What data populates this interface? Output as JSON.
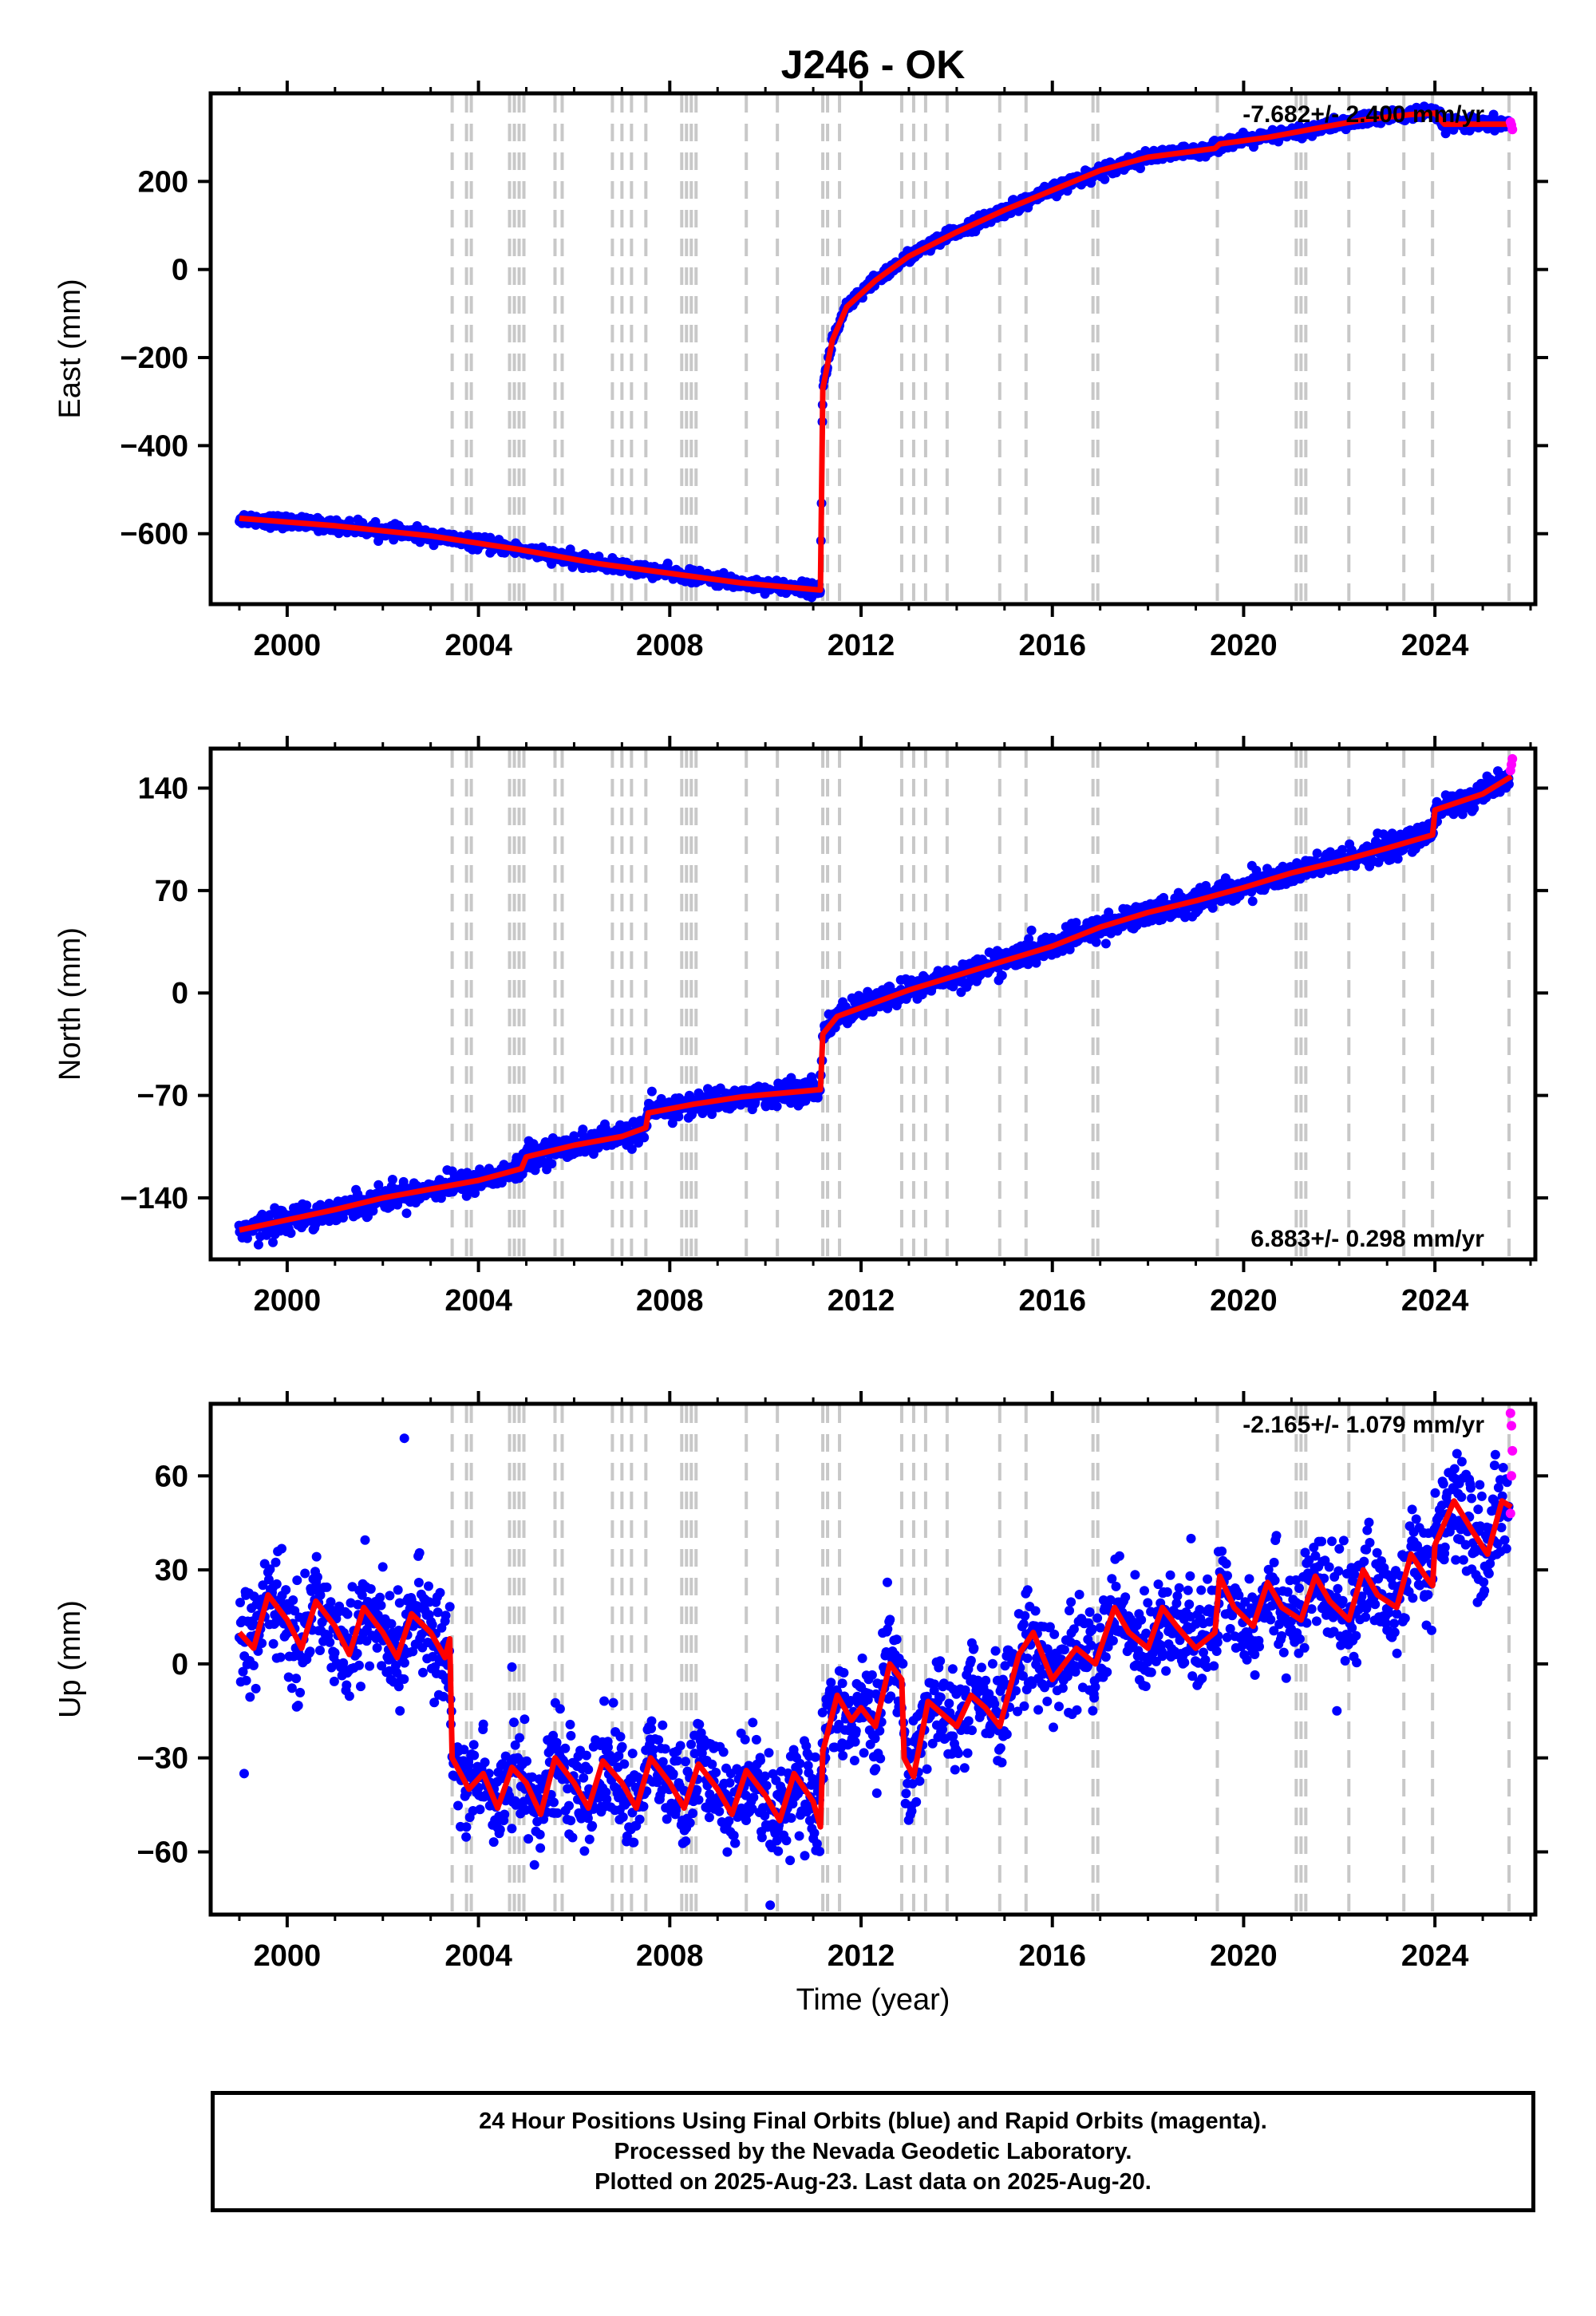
{
  "title": "J246 - OK",
  "footer": {
    "line1": "24 Hour Positions Using Final Orbits (blue) and Rapid Orbits (magenta).",
    "line2": "Processed by the Nevada Geodetic Laboratory.",
    "line3": "Plotted on 2025-Aug-23. Last data on 2025-Aug-20."
  },
  "colors": {
    "final_orbits": "#0000ff",
    "rapid_orbits": "#ff00ff",
    "model_fit": "#ff0000",
    "event_lines": "#c8c8c8"
  },
  "chart_data": [
    {
      "type": "scatter",
      "name": "east",
      "ylabel": "East (mm)",
      "xlabel": "",
      "xlim": [
        1998.4,
        2026.1
      ],
      "ylim": [
        -760,
        400
      ],
      "xticks": [
        2000,
        2004,
        2008,
        2012,
        2016,
        2020,
        2024
      ],
      "yticks": [
        -600,
        -400,
        -200,
        0,
        200
      ],
      "ytick_labels": [
        "−600",
        "−400",
        "−200",
        "0",
        "200"
      ],
      "rate_text": "-7.682+/- 2.400 mm/yr",
      "rate_position": "top-right",
      "event_lines": [
        2003.45,
        2003.75,
        2003.85,
        2004.65,
        2004.75,
        2004.85,
        2004.95,
        2005.6,
        2005.75,
        2006.8,
        2007.0,
        2007.2,
        2007.5,
        2008.25,
        2008.35,
        2008.45,
        2008.55,
        2009.6,
        2010.25,
        2011.2,
        2011.3,
        2011.55,
        2012.85,
        2013.1,
        2013.35,
        2013.8,
        2014.9,
        2015.45,
        2016.85,
        2016.95,
        2019.45,
        2021.1,
        2021.2,
        2021.3,
        2022.2,
        2023.35,
        2023.95,
        2025.55
      ],
      "model": [
        [
          1999.0,
          -565
        ],
        [
          2001.0,
          -582
        ],
        [
          2003.0,
          -605
        ],
        [
          2004.8,
          -635
        ],
        [
          2006.5,
          -668
        ],
        [
          2008.0,
          -690
        ],
        [
          2009.5,
          -712
        ],
        [
          2011.15,
          -728
        ],
        [
          2011.2,
          -270
        ],
        [
          2011.4,
          -160
        ],
        [
          2011.7,
          -85
        ],
        [
          2012.3,
          -25
        ],
        [
          2013.0,
          30
        ],
        [
          2014.0,
          85
        ],
        [
          2015.0,
          135
        ],
        [
          2016.0,
          180
        ],
        [
          2017.0,
          225
        ],
        [
          2018.0,
          255
        ],
        [
          2019.4,
          275
        ],
        [
          2019.5,
          285
        ],
        [
          2020.5,
          300
        ],
        [
          2021.5,
          320
        ],
        [
          2022.5,
          340
        ],
        [
          2023.5,
          352
        ],
        [
          2024.0,
          355
        ],
        [
          2024.2,
          330
        ],
        [
          2025.0,
          330
        ],
        [
          2025.6,
          330
        ]
      ],
      "noise_mm": 7,
      "outliers": [],
      "rapid_points": [
        [
          2025.58,
          335
        ],
        [
          2025.6,
          328
        ],
        [
          2025.62,
          318
        ]
      ]
    },
    {
      "type": "scatter",
      "name": "north",
      "ylabel": "North (mm)",
      "xlabel": "",
      "xlim": [
        1998.4,
        2026.1
      ],
      "ylim": [
        -182,
        167
      ],
      "xticks": [
        2000,
        2004,
        2008,
        2012,
        2016,
        2020,
        2024
      ],
      "yticks": [
        -140,
        -70,
        0,
        70,
        140
      ],
      "ytick_labels": [
        "−140",
        "−70",
        "0",
        "70",
        "140"
      ],
      "rate_text": "6.883+/- 0.298 mm/yr",
      "rate_position": "bottom-right",
      "event_lines": [
        2003.45,
        2003.75,
        2003.85,
        2004.65,
        2004.75,
        2004.85,
        2004.95,
        2005.6,
        2005.75,
        2006.8,
        2007.0,
        2007.2,
        2007.5,
        2008.25,
        2008.35,
        2008.45,
        2008.55,
        2009.6,
        2010.25,
        2011.2,
        2011.3,
        2011.55,
        2012.85,
        2013.1,
        2013.35,
        2013.8,
        2014.9,
        2015.45,
        2016.85,
        2016.95,
        2019.45,
        2021.1,
        2021.2,
        2021.3,
        2022.2,
        2023.35,
        2023.95,
        2025.55
      ],
      "model": [
        [
          1999.0,
          -162
        ],
        [
          2000.0,
          -155
        ],
        [
          2001.0,
          -148
        ],
        [
          2002.0,
          -140
        ],
        [
          2003.0,
          -134
        ],
        [
          2004.0,
          -128
        ],
        [
          2004.9,
          -120
        ],
        [
          2005.0,
          -112
        ],
        [
          2006.0,
          -104
        ],
        [
          2007.0,
          -98
        ],
        [
          2007.5,
          -92
        ],
        [
          2007.55,
          -82
        ],
        [
          2008.5,
          -76
        ],
        [
          2009.5,
          -71
        ],
        [
          2011.15,
          -66
        ],
        [
          2011.2,
          -28
        ],
        [
          2011.5,
          -16
        ],
        [
          2012.0,
          -10
        ],
        [
          2013.0,
          2
        ],
        [
          2014.0,
          12
        ],
        [
          2015.0,
          22
        ],
        [
          2016.0,
          32
        ],
        [
          2017.0,
          45
        ],
        [
          2018.0,
          55
        ],
        [
          2019.0,
          63
        ],
        [
          2020.0,
          72
        ],
        [
          2021.0,
          82
        ],
        [
          2022.0,
          90
        ],
        [
          2023.0,
          99
        ],
        [
          2023.95,
          108
        ],
        [
          2024.0,
          125
        ],
        [
          2025.0,
          136
        ],
        [
          2025.6,
          148
        ]
      ],
      "noise_mm": 4,
      "outliers": [
        [
          1999.4,
          -172
        ],
        [
          2020.7,
          78
        ]
      ],
      "rapid_points": [
        [
          2025.58,
          152
        ],
        [
          2025.6,
          156
        ],
        [
          2025.62,
          160
        ]
      ]
    },
    {
      "type": "scatter",
      "name": "up",
      "ylabel": "Up (mm)",
      "xlabel": "Time (year)",
      "xlim": [
        1998.4,
        2026.1
      ],
      "ylim": [
        -80,
        83
      ],
      "xticks": [
        2000,
        2004,
        2008,
        2012,
        2016,
        2020,
        2024
      ],
      "yticks": [
        -60,
        -30,
        0,
        30,
        60
      ],
      "ytick_labels": [
        "−60",
        "−30",
        "0",
        "30",
        "60"
      ],
      "rate_text": "-2.165+/- 1.079 mm/yr",
      "rate_position": "top-right",
      "event_lines": [
        2003.45,
        2003.75,
        2003.85,
        2004.65,
        2004.75,
        2004.85,
        2004.95,
        2005.6,
        2005.75,
        2006.8,
        2007.0,
        2007.2,
        2007.5,
        2008.25,
        2008.35,
        2008.45,
        2008.55,
        2009.6,
        2010.25,
        2011.2,
        2011.3,
        2011.55,
        2012.85,
        2013.1,
        2013.35,
        2013.8,
        2014.9,
        2015.45,
        2016.85,
        2016.95,
        2019.45,
        2021.1,
        2021.2,
        2021.3,
        2022.2,
        2023.35,
        2023.95,
        2025.55
      ],
      "model": [
        [
          1999.0,
          10
        ],
        [
          1999.3,
          5
        ],
        [
          1999.6,
          22
        ],
        [
          2000.0,
          14
        ],
        [
          2000.3,
          5
        ],
        [
          2000.6,
          20
        ],
        [
          2001.0,
          12
        ],
        [
          2001.3,
          3
        ],
        [
          2001.6,
          18
        ],
        [
          2002.0,
          10
        ],
        [
          2002.3,
          2
        ],
        [
          2002.6,
          16
        ],
        [
          2003.0,
          10
        ],
        [
          2003.3,
          2
        ],
        [
          2003.4,
          8
        ],
        [
          2003.45,
          -30
        ],
        [
          2003.8,
          -40
        ],
        [
          2004.1,
          -35
        ],
        [
          2004.4,
          -46
        ],
        [
          2004.7,
          -33
        ],
        [
          2005.0,
          -38
        ],
        [
          2005.3,
          -48
        ],
        [
          2005.6,
          -30
        ],
        [
          2006.0,
          -38
        ],
        [
          2006.3,
          -46
        ],
        [
          2006.6,
          -31
        ],
        [
          2007.0,
          -38
        ],
        [
          2007.3,
          -46
        ],
        [
          2007.6,
          -30
        ],
        [
          2008.0,
          -38
        ],
        [
          2008.3,
          -46
        ],
        [
          2008.6,
          -32
        ],
        [
          2009.0,
          -40
        ],
        [
          2009.3,
          -48
        ],
        [
          2009.6,
          -34
        ],
        [
          2010.0,
          -42
        ],
        [
          2010.3,
          -50
        ],
        [
          2010.6,
          -35
        ],
        [
          2011.0,
          -44
        ],
        [
          2011.15,
          -52
        ],
        [
          2011.2,
          -28
        ],
        [
          2011.5,
          -10
        ],
        [
          2011.8,
          -18
        ],
        [
          2012.0,
          -14
        ],
        [
          2012.3,
          -20
        ],
        [
          2012.6,
          0
        ],
        [
          2012.85,
          -5
        ],
        [
          2012.9,
          -30
        ],
        [
          2013.1,
          -36
        ],
        [
          2013.4,
          -12
        ],
        [
          2013.7,
          -16
        ],
        [
          2014.0,
          -20
        ],
        [
          2014.3,
          -10
        ],
        [
          2014.6,
          -14
        ],
        [
          2014.9,
          -20
        ],
        [
          2015.3,
          3
        ],
        [
          2015.6,
          10
        ],
        [
          2016.0,
          -5
        ],
        [
          2016.5,
          5
        ],
        [
          2016.9,
          0
        ],
        [
          2017.3,
          18
        ],
        [
          2017.6,
          10
        ],
        [
          2018.0,
          5
        ],
        [
          2018.3,
          18
        ],
        [
          2018.6,
          12
        ],
        [
          2019.0,
          5
        ],
        [
          2019.4,
          10
        ],
        [
          2019.5,
          28
        ],
        [
          2019.8,
          18
        ],
        [
          2020.2,
          12
        ],
        [
          2020.5,
          26
        ],
        [
          2020.8,
          18
        ],
        [
          2021.2,
          14
        ],
        [
          2021.5,
          28
        ],
        [
          2021.8,
          20
        ],
        [
          2022.2,
          14
        ],
        [
          2022.5,
          30
        ],
        [
          2022.8,
          22
        ],
        [
          2023.2,
          18
        ],
        [
          2023.5,
          35
        ],
        [
          2023.8,
          28
        ],
        [
          2023.95,
          25
        ],
        [
          2024.0,
          38
        ],
        [
          2024.4,
          52
        ],
        [
          2024.8,
          42
        ],
        [
          2025.1,
          35
        ],
        [
          2025.4,
          52
        ],
        [
          2025.6,
          50
        ]
      ],
      "noise_mm": 8,
      "outliers": [
        [
          1999.1,
          -35
        ],
        [
          2002.45,
          72
        ],
        [
          2004.7,
          -1
        ],
        [
          2010.1,
          -77
        ],
        [
          2012.55,
          26
        ],
        [
          2015.3,
          16
        ],
        [
          2021.95,
          -15
        ],
        [
          2018.9,
          40
        ]
      ],
      "rapid_points": [
        [
          2025.58,
          80
        ],
        [
          2025.6,
          76
        ],
        [
          2025.62,
          68
        ],
        [
          2025.6,
          60
        ],
        [
          2025.58,
          48
        ]
      ]
    }
  ]
}
